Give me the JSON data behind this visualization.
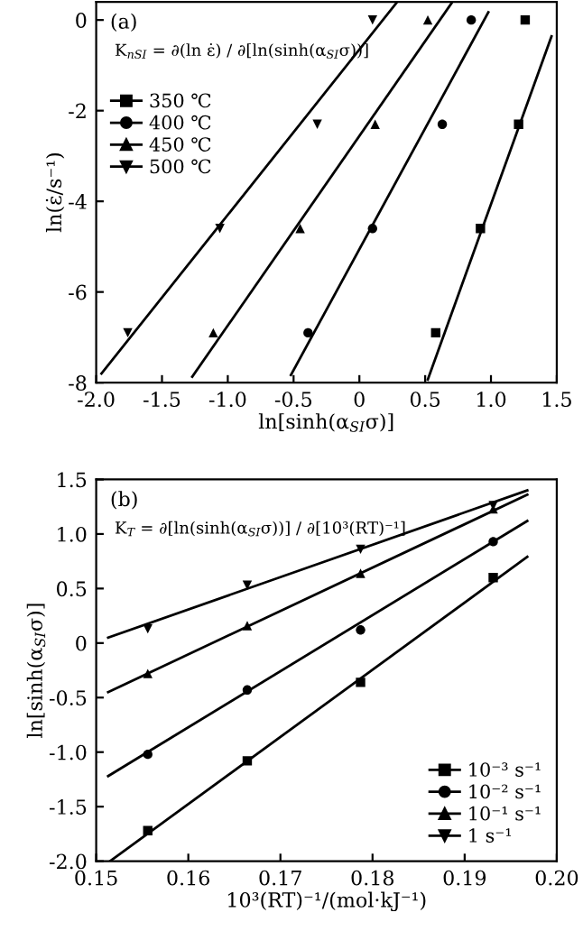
{
  "chart_data": [
    {
      "type": "scatter",
      "title": "(a)",
      "xlabel": "ln[sinh(α$_{SI}$σ)]",
      "ylabel": "ln(ε̇/s⁻¹)",
      "annotations": [
        "K$_{nSI}$ = ∂(ln ε̇) / ∂[ln(sinh(α$_{SI}$σ))]"
      ],
      "xlim": [
        -2.0,
        1.5
      ],
      "ylim": [
        -8,
        0.4
      ],
      "xticks": [
        {
          "value": -2.0,
          "label": "-2.0"
        },
        {
          "value": -1.5,
          "label": "-1.5"
        },
        {
          "value": -1.0,
          "label": "-1.0"
        },
        {
          "value": -0.5,
          "label": "-0.5"
        },
        0,
        0.5,
        {
          "value": 1.0,
          "label": "1.0"
        },
        1.5
      ],
      "yticks": [
        0,
        {
          "value": -2,
          "label": "-2"
        },
        {
          "value": -4,
          "label": "-4"
        },
        {
          "value": -6,
          "label": "-6"
        },
        {
          "value": -8,
          "label": "-8"
        }
      ],
      "grid": false,
      "legend": "top left",
      "series": [
        {
          "name": "350 ℃",
          "marker": "square",
          "color": "#000000",
          "x": [
            1.26,
            1.21,
            0.92,
            0.58
          ],
          "values": [
            0,
            -2.3,
            -4.6,
            -6.9
          ]
        },
        {
          "type": "line",
          "line_style": "solid",
          "color": "#000000",
          "x": [
            0.52,
            1.46
          ],
          "values": [
            -7.93,
            -0.36
          ]
        },
        {
          "name": "400 ℃",
          "marker": "circle",
          "color": "#000000",
          "x": [
            0.85,
            0.63,
            0.1,
            -0.39
          ],
          "values": [
            0,
            -2.3,
            -4.6,
            -6.9
          ]
        },
        {
          "type": "line",
          "line_style": "solid",
          "color": "#000000",
          "x": [
            -0.52,
            0.98
          ],
          "values": [
            -7.83,
            0.17
          ]
        },
        {
          "name": "450 ℃",
          "marker": "triangle",
          "color": "#000000",
          "x": [
            0.52,
            0.12,
            -0.45,
            -1.11
          ],
          "values": [
            0,
            -2.3,
            -4.6,
            -6.9
          ]
        },
        {
          "type": "line",
          "line_style": "solid",
          "color": "#000000",
          "x": [
            -1.27,
            0.7
          ],
          "values": [
            -7.87,
            0.37
          ]
        },
        {
          "name": "500 ℃",
          "marker": "triangle_down",
          "color": "#000000",
          "x": [
            0.1,
            -0.32,
            -1.06,
            -1.76
          ],
          "values": [
            0,
            -2.3,
            -4.6,
            -6.9
          ]
        },
        {
          "type": "line",
          "line_style": "solid",
          "color": "#000000",
          "x": [
            -1.96,
            0.28
          ],
          "values": [
            -7.8,
            0.37
          ]
        }
      ]
    },
    {
      "type": "scatter",
      "title": "(b)",
      "xlabel": "10³(RT)⁻¹/(mol·kJ⁻¹)",
      "ylabel": "ln[sinh(α$_{SI}$σ)]",
      "annotations": [
        "K$_{T}$ = ∂[ln(sinh(α$_{SI}$σ))] / ∂[10³(RT)⁻¹]"
      ],
      "xlim": [
        0.15,
        0.2
      ],
      "ylim": [
        -2.0,
        1.5
      ],
      "xticks": [
        0.15,
        0.16,
        0.17,
        0.18,
        0.19,
        {
          "value": 0.2,
          "label": "0.20"
        }
      ],
      "yticks": [
        1.5,
        {
          "value": 1.0,
          "label": "1.0"
        },
        0.5,
        0,
        {
          "value": -0.5,
          "label": "-0.5"
        },
        {
          "value": -1.0,
          "label": "-1.0"
        },
        {
          "value": -1.5,
          "label": "-1.5"
        },
        {
          "value": -2.0,
          "label": "-2.0"
        }
      ],
      "grid": false,
      "legend": "bottom right",
      "series": [
        {
          "name": "10⁻³ s⁻¹",
          "marker": "square",
          "color": "#000000",
          "x": [
            0.1556,
            0.1664,
            0.1787,
            0.1931
          ],
          "values": [
            -1.72,
            -1.08,
            -0.36,
            0.6
          ]
        },
        {
          "type": "line",
          "line_style": "solid",
          "color": "#000000",
          "x": [
            0.1515,
            0.1968
          ],
          "values": [
            -2.0,
            0.79
          ]
        },
        {
          "name": "10⁻² s⁻¹",
          "marker": "circle",
          "color": "#000000",
          "x": [
            0.1556,
            0.1664,
            0.1787,
            0.1931
          ],
          "values": [
            -1.02,
            -0.43,
            0.12,
            0.93
          ]
        },
        {
          "type": "line",
          "line_style": "solid",
          "color": "#000000",
          "x": [
            0.1513,
            0.1968
          ],
          "values": [
            -1.22,
            1.12
          ]
        },
        {
          "name": "10⁻¹ s⁻¹",
          "marker": "triangle",
          "color": "#000000",
          "x": [
            0.1556,
            0.1664,
            0.1787,
            0.1931
          ],
          "values": [
            -0.28,
            0.16,
            0.64,
            1.23
          ]
        },
        {
          "type": "line",
          "line_style": "solid",
          "color": "#000000",
          "x": [
            0.1513,
            0.1968
          ],
          "values": [
            -0.45,
            1.36
          ]
        },
        {
          "name": "1 s⁻¹",
          "marker": "triangle_down",
          "color": "#000000",
          "x": [
            0.1556,
            0.1664,
            0.1787,
            0.1931
          ],
          "values": [
            0.13,
            0.53,
            0.86,
            1.26
          ]
        },
        {
          "type": "line",
          "line_style": "solid",
          "color": "#000000",
          "x": [
            0.1513,
            0.1968
          ],
          "values": [
            0.05,
            1.4
          ]
        }
      ]
    }
  ]
}
